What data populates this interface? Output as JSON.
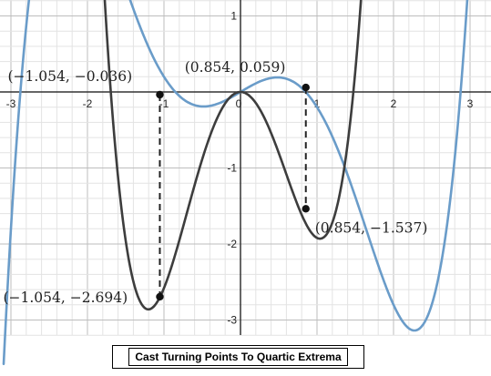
{
  "chart_data": {
    "type": "line",
    "title": "",
    "caption": "Cast Turning Points To Quartic Extrema",
    "xlim": [
      -3.15,
      3.2
    ],
    "ylim": [
      -3.2,
      1.2
    ],
    "grid": true,
    "minor_grid_step": 0.2,
    "x_ticks": [
      -3,
      -2,
      -1,
      0,
      1,
      2,
      3
    ],
    "x_tick_labels": [
      "-3",
      "-2",
      "-1",
      "0",
      "1",
      "2",
      "3"
    ],
    "y_ticks": [
      1,
      -1,
      -2,
      -3
    ],
    "y_tick_labels": [
      "1",
      "-1",
      "-2",
      "-3"
    ],
    "series": [
      {
        "kind": "quintic",
        "color": "#6a9cc9",
        "coefficients_high_to_low": [
          0.1,
          0,
          -0.9,
          0,
          0.6,
          0
        ],
        "sampled_points": [
          [
            -3.15,
            -0.65
          ],
          [
            -2.9,
            0.37
          ],
          [
            -2.4,
            0.66
          ],
          [
            -2.0,
            0.52
          ],
          [
            -1.5,
            0.16
          ],
          [
            -1.054,
            -0.036
          ],
          [
            -0.5,
            -0.03
          ],
          [
            0,
            0
          ],
          [
            0.5,
            0.09
          ],
          [
            0.854,
            0.059
          ],
          [
            1.5,
            -0.17
          ],
          [
            2.0,
            -0.32
          ],
          [
            2.4,
            -0.16
          ],
          [
            2.7,
            0.25
          ],
          [
            3.0,
            0.81
          ],
          [
            3.2,
            1.33
          ]
        ]
      },
      {
        "kind": "quartic",
        "color": "#3d3d3d",
        "coefficients_high_to_low": [
          1.5,
          0.33,
          -3.75,
          0,
          0
        ],
        "sampled_points": [
          [
            -1.5,
            0.14
          ],
          [
            -1.2,
            -2.42
          ],
          [
            -1.054,
            -2.694
          ],
          [
            -0.8,
            -2.0
          ],
          [
            -0.4,
            -0.56
          ],
          [
            0,
            0
          ],
          [
            0.4,
            -0.54
          ],
          [
            0.854,
            -1.537
          ],
          [
            1.2,
            -0.78
          ],
          [
            1.35,
            0.28
          ]
        ]
      }
    ],
    "turning_points": [
      {
        "x": -1.054,
        "y": -0.036,
        "label": "(−1.054, −0.036)"
      },
      {
        "x": 0.854,
        "y": 0.059,
        "label": "(0.854, 0.059)"
      },
      {
        "x": -1.054,
        "y": -2.694,
        "label": "(−1.054, −2.694)"
      },
      {
        "x": 0.854,
        "y": -1.537,
        "label": "(0.854, −1.537)"
      }
    ],
    "dashed_connectors": [
      {
        "x": -1.054,
        "y_from": -0.036,
        "y_to": -2.694
      },
      {
        "x": 0.854,
        "y_from": 0.059,
        "y_to": -1.537
      }
    ]
  }
}
